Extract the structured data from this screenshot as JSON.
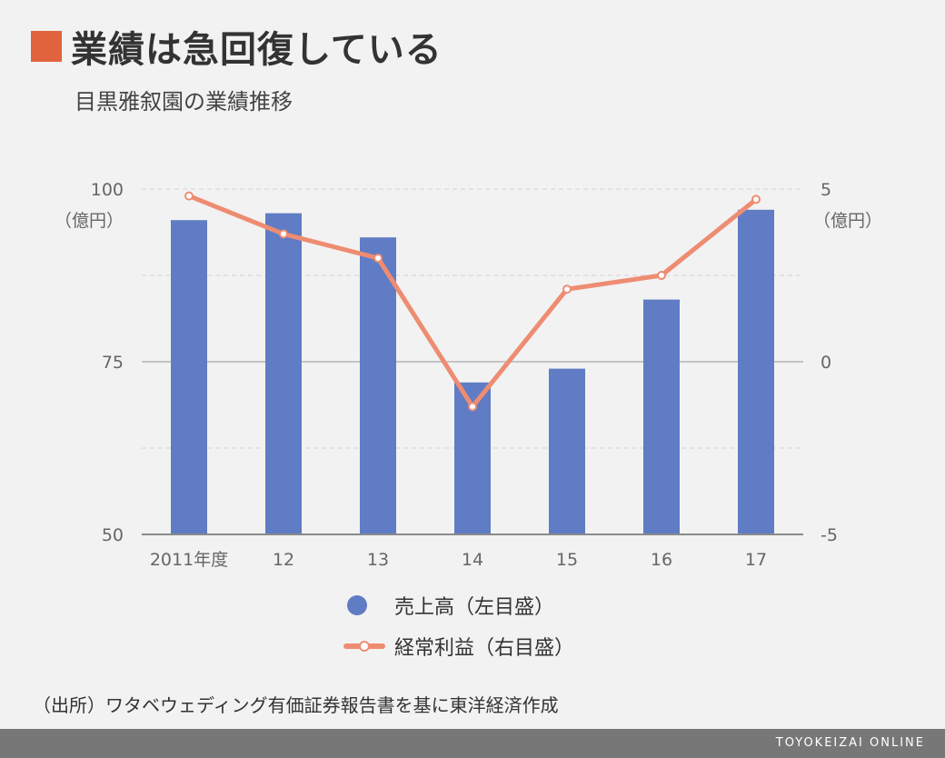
{
  "title": "業績は急回復している",
  "subtitle": "目黒雅叙園の業績推移",
  "source": "（出所）ワタベウェディング有価証券報告書を基に東洋経済作成",
  "footer": "TOYOKEIZAI ONLINE",
  "colors": {
    "accent": "#e0633d",
    "bar": "#5f7cc4",
    "line": "#ee8c72",
    "background": "#f2f2f2"
  },
  "legend": {
    "sales": "売上高（左目盛）",
    "profit": "経常利益（右目盛）"
  },
  "chart_data": {
    "type": "bar",
    "categories": [
      "2011年度",
      "12",
      "13",
      "14",
      "15",
      "16",
      "17"
    ],
    "left_axis": {
      "ticks": [
        "100",
        "75",
        "50"
      ],
      "unit": "（億円）",
      "ylim": [
        50,
        100
      ]
    },
    "right_axis": {
      "ticks": [
        "5",
        "0",
        "-5"
      ],
      "unit": "（億円）",
      "ylim": [
        -5,
        5
      ]
    },
    "series": [
      {
        "name": "売上高（左目盛）",
        "type": "bar",
        "axis": "left",
        "values": [
          95.5,
          96.5,
          93,
          72,
          74,
          84,
          97
        ]
      },
      {
        "name": "経常利益（右目盛）",
        "type": "line",
        "axis": "right",
        "values": [
          4.8,
          3.7,
          3.0,
          -1.3,
          2.1,
          2.5,
          4.7
        ]
      }
    ],
    "grid": true,
    "legend_position": "bottom"
  }
}
